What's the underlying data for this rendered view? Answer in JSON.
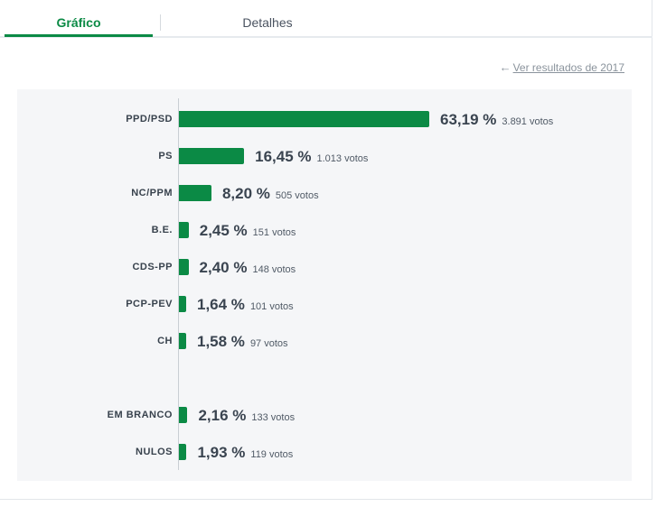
{
  "tabs": [
    {
      "label": "Gráfico",
      "active": true
    },
    {
      "label": "Detalhes",
      "active": false
    }
  ],
  "back_link": {
    "label": "Ver resultados de 2017"
  },
  "colors": {
    "bar": "#0b8a45",
    "accent": "#0b8a45"
  },
  "chart_data": {
    "type": "bar",
    "orientation": "horizontal",
    "categories": [
      "PPD/PSD",
      "PS",
      "NC/PPM",
      "B.E.",
      "CDS-PP",
      "PCP-PEV",
      "CH",
      "EM BRANCO",
      "NULOS"
    ],
    "values": [
      63.19,
      16.45,
      8.2,
      2.45,
      2.4,
      1.64,
      1.58,
      2.16,
      1.93
    ],
    "pct_labels": [
      "63,19 %",
      "16,45 %",
      "8,20 %",
      "2,45 %",
      "2,40 %",
      "1,64 %",
      "1,58 %",
      "2,16 %",
      "1,93 %"
    ],
    "votes": [
      "3.891 votos",
      "1.013 votos",
      "505 votos",
      "151 votos",
      "148 votos",
      "101 votos",
      "97 votos",
      "133 votos",
      "119 votos"
    ],
    "xlim": [
      0,
      100
    ],
    "grid": false
  }
}
